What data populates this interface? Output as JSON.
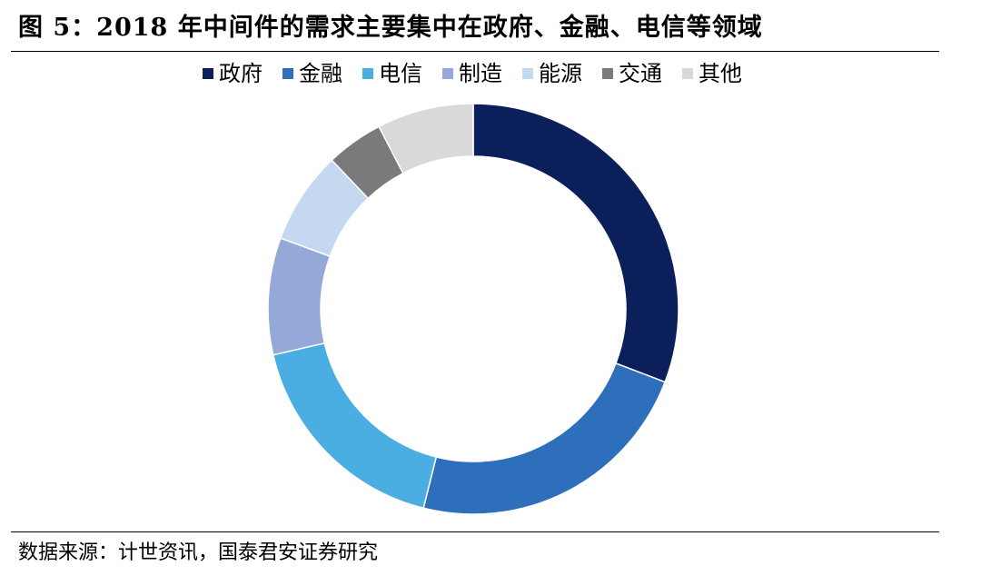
{
  "figure": {
    "title": "图 5：2018 年中间件的需求主要集中在政府、金融、电信等领域",
    "source": "数据来源：计世资讯，国泰君安证券研究"
  },
  "chart_data": {
    "type": "pie",
    "donut": true,
    "legend_position": "top",
    "categories": [
      "政府",
      "金融",
      "电信",
      "制造",
      "能源",
      "交通",
      "其他"
    ],
    "values": [
      30.8,
      23.1,
      17.5,
      9.2,
      7.3,
      4.5,
      7.6
    ],
    "colors": [
      "#0b1f5b",
      "#2e6fbc",
      "#4aaee3",
      "#94a9d8",
      "#c4d9ef",
      "#7a7a7a",
      "#d9d9d9"
    ],
    "start_angle_deg": 0,
    "direction": "clockwise"
  }
}
